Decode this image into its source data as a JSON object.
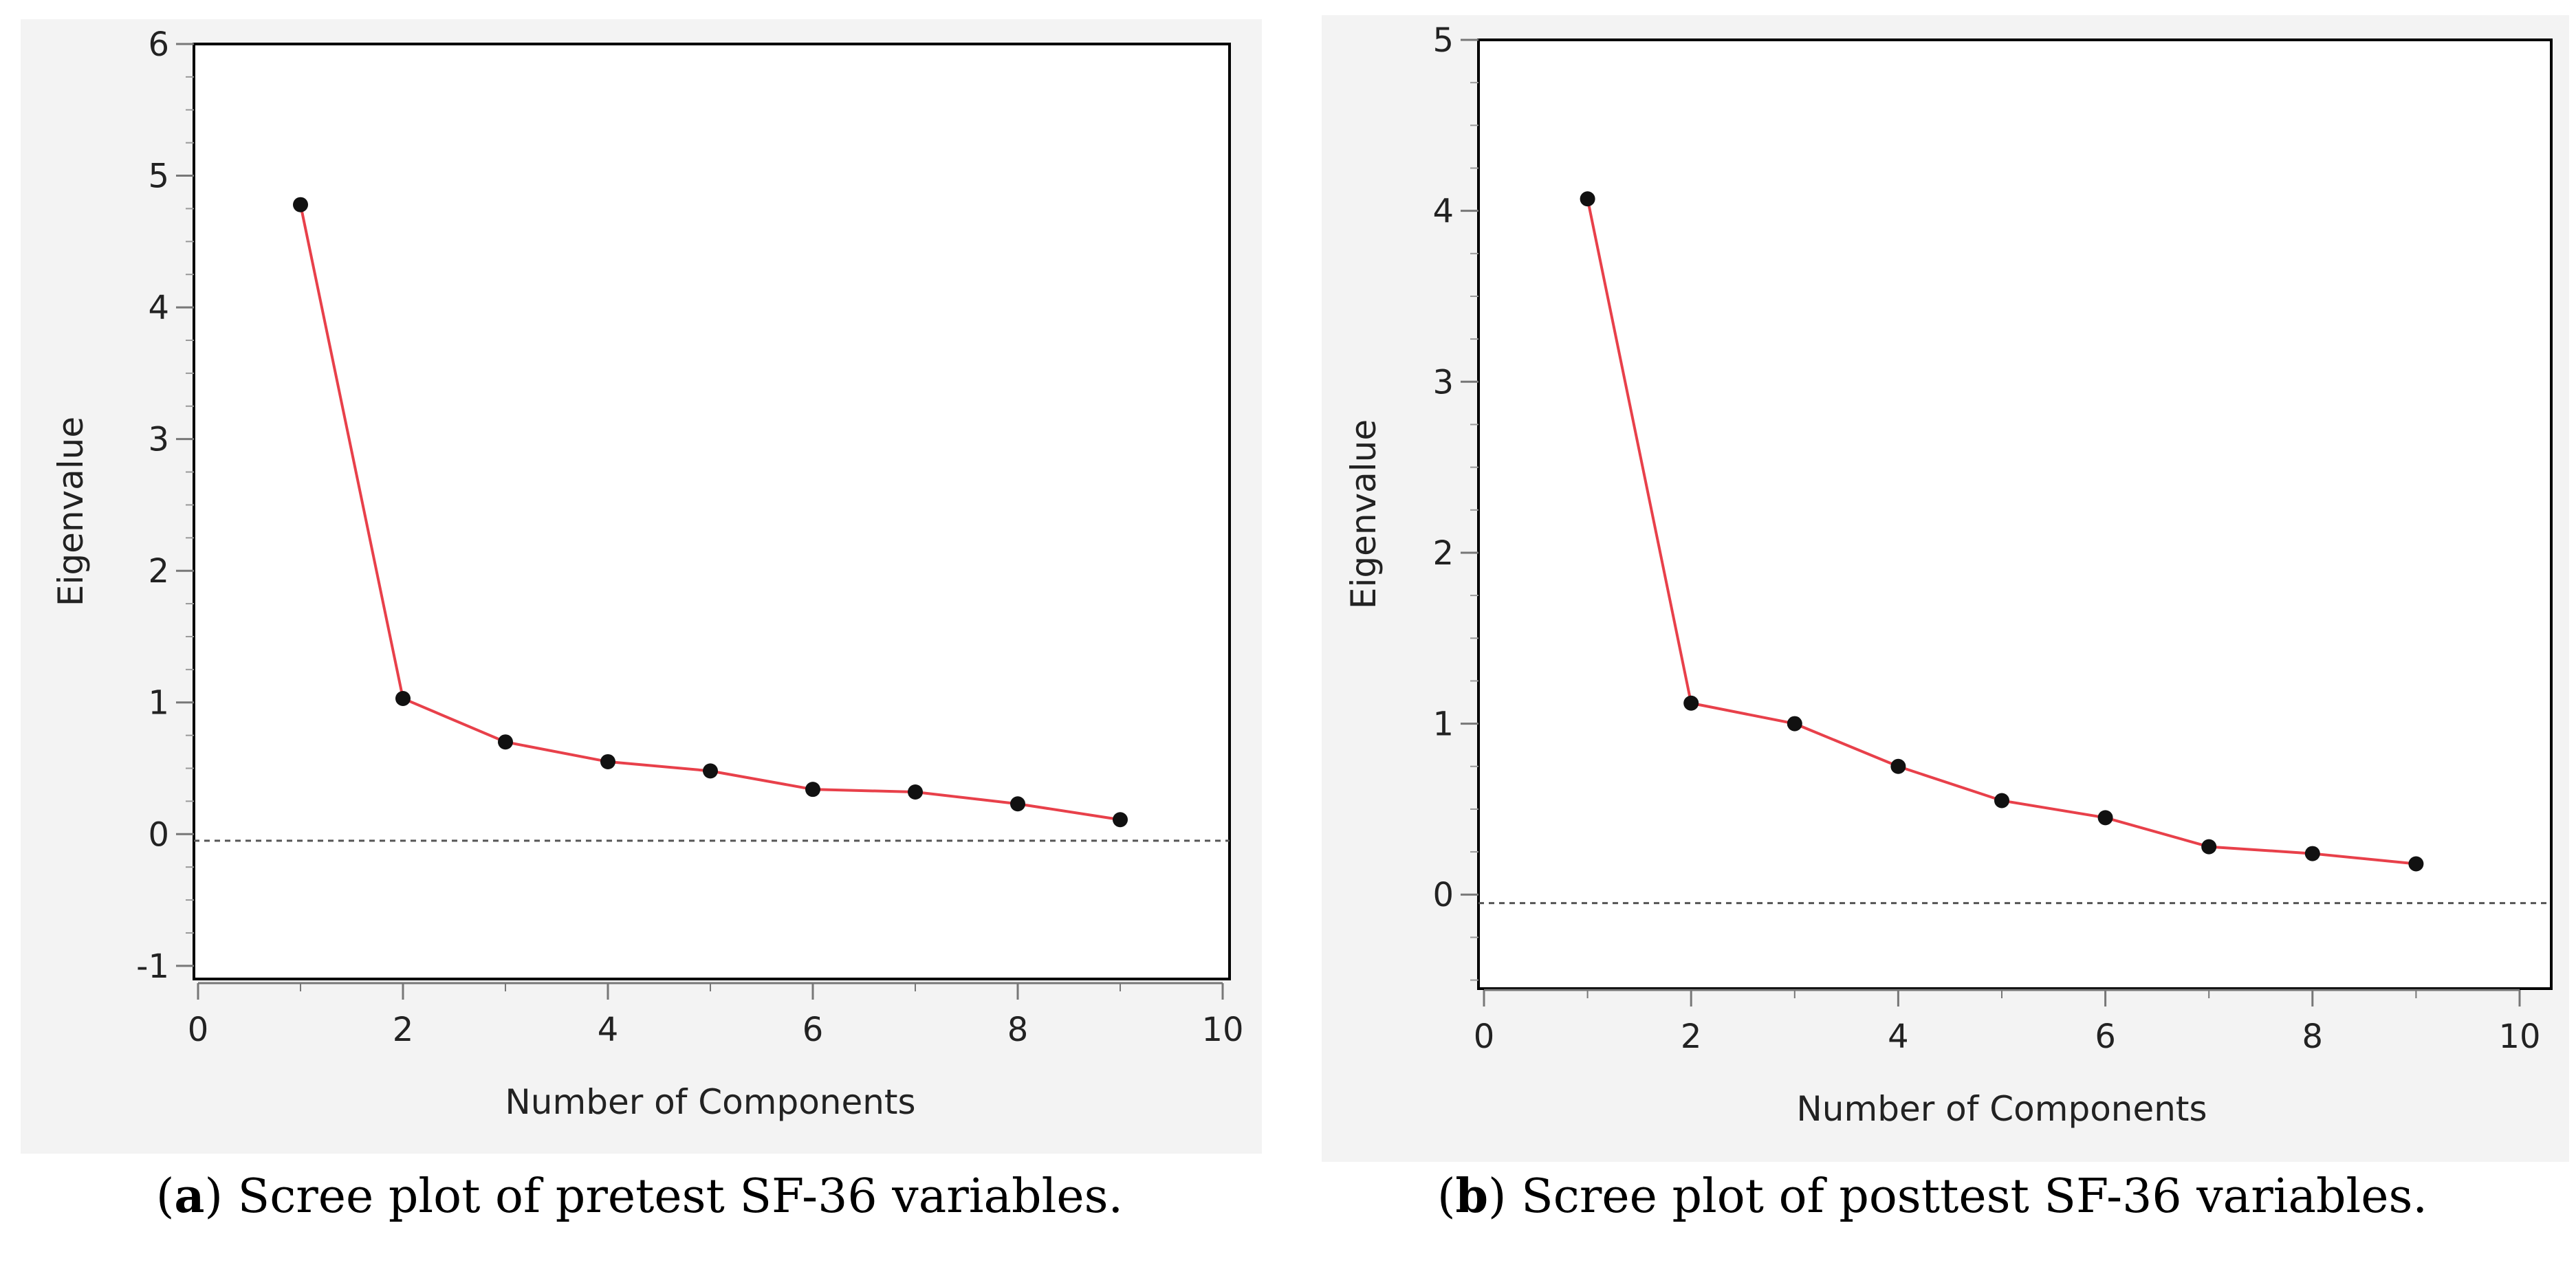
{
  "chart_data": [
    {
      "type": "line",
      "panel_letter": "a",
      "caption": ") Scree plot of pretest SF-36 variables.",
      "xlabel": "Number of Components",
      "ylabel": "Eigenvalue",
      "xlim": [
        0,
        10
      ],
      "ylim": [
        -1.1,
        6.0
      ],
      "xticks": [
        "0",
        "2",
        "4",
        "6",
        "8",
        "10"
      ],
      "yticks": [
        "-1",
        "0",
        "1",
        "2",
        "3",
        "4",
        "5",
        "6"
      ],
      "x": [
        1,
        2,
        3,
        4,
        5,
        6,
        7,
        8,
        9
      ],
      "values": [
        4.78,
        1.03,
        0.7,
        0.55,
        0.48,
        0.34,
        0.32,
        0.23,
        0.11
      ],
      "reference_line": -0.05,
      "line_color": "#e8404a",
      "marker_color": "#111111"
    },
    {
      "type": "line",
      "panel_letter": "b",
      "caption": ") Scree plot of posttest SF-36 variables.",
      "xlabel": "Number of Components",
      "ylabel": "Eigenvalue",
      "xlim": [
        0,
        10
      ],
      "ylim": [
        -0.55,
        5.0
      ],
      "xticks": [
        "0",
        "2",
        "4",
        "6",
        "8",
        "10"
      ],
      "yticks": [
        "0",
        "1",
        "2",
        "3",
        "4",
        "5"
      ],
      "x": [
        1,
        2,
        3,
        4,
        5,
        6,
        7,
        8,
        9
      ],
      "values": [
        4.07,
        1.12,
        1.0,
        0.75,
        0.55,
        0.45,
        0.28,
        0.24,
        0.18
      ],
      "reference_line": -0.05,
      "line_color": "#e8404a",
      "marker_color": "#111111"
    }
  ]
}
